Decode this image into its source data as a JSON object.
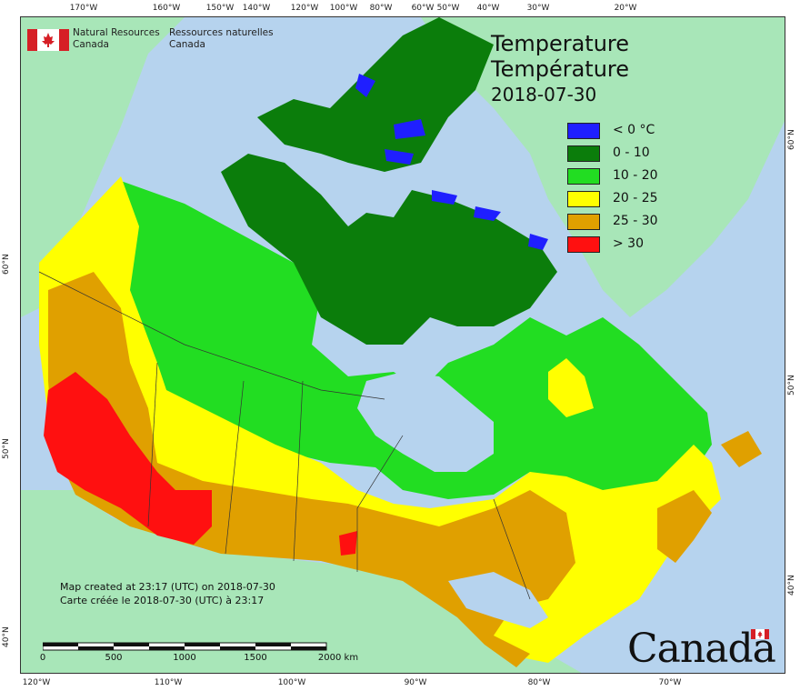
{
  "map": {
    "title_en": "Temperature",
    "title_fr": "Température",
    "date": "2018-07-30",
    "legend": [
      {
        "label": "< 0 °C",
        "color": "#1f1fff"
      },
      {
        "label": "0 - 10",
        "color": "#0b7d0b"
      },
      {
        "label": "10 - 20",
        "color": "#22dd22"
      },
      {
        "label": "20 - 25",
        "color": "#ffff00"
      },
      {
        "label": "25 - 30",
        "color": "#e0a000"
      },
      {
        "label": "> 30",
        "color": "#ff1010"
      }
    ],
    "agency": {
      "en_line1": "Natural Resources",
      "en_line2": "Canada",
      "fr_line1": "Ressources naturelles",
      "fr_line2": "Canada"
    },
    "credit_en": "Map created at 23:17 (UTC) on 2018-07-30",
    "credit_fr": "Carte créée le 2018-07-30 (UTC) à 23:17",
    "scale": {
      "labels": [
        "0",
        "500",
        "1000",
        "1500",
        "2000  km"
      ]
    },
    "wordmark": "Canada",
    "ticks_top": [
      "170°W",
      "160°W",
      "150°W",
      "140°W",
      "120°W",
      "100°W",
      "80°W",
      "60°W",
      "50°W",
      "40°W",
      "30°W",
      "20°W"
    ],
    "ticks_bottom": [
      "120°W",
      "110°W",
      "100°W",
      "90°W",
      "80°W",
      "70°W"
    ],
    "ticks_left": [
      "60°N",
      "50°N",
      "40°N"
    ],
    "ticks_right": [
      "60°N",
      "50°N",
      "40°N"
    ],
    "colors": {
      "ocean": "#b6d3ee",
      "foreign_land": "#a8e6b8",
      "lake": "#b6d3ee",
      "border": "#333333"
    }
  }
}
